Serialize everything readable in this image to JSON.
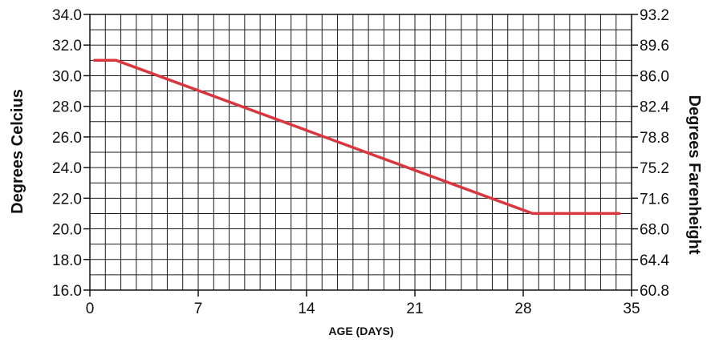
{
  "chart_data": {
    "type": "line",
    "title": "",
    "xlabel": "AGE (DAYS)",
    "ylabel": "Degrees Celcius",
    "ylabel_right": "Degrees Farenheight",
    "xlim": [
      0,
      35
    ],
    "ylim": [
      16.0,
      34.0
    ],
    "x_ticks": [
      "0",
      "7",
      "14",
      "21",
      "28",
      "35"
    ],
    "y_ticks_left": [
      "16.0",
      "18.0",
      "20.0",
      "22.0",
      "24.0",
      "26.0",
      "28.0",
      "30.0",
      "32.0",
      "34.0"
    ],
    "y_ticks_right": [
      "60.8",
      "64.4",
      "68.0",
      "71.6",
      "75.2",
      "78.8",
      "82.4",
      "86.0",
      "89.6",
      "93.2"
    ],
    "grid": true,
    "series": [
      {
        "color": "#d9363e",
        "x": [
          0.3,
          1.7,
          28.6,
          34.2
        ],
        "y": [
          31.0,
          31.0,
          21.0,
          21.0
        ]
      }
    ]
  }
}
